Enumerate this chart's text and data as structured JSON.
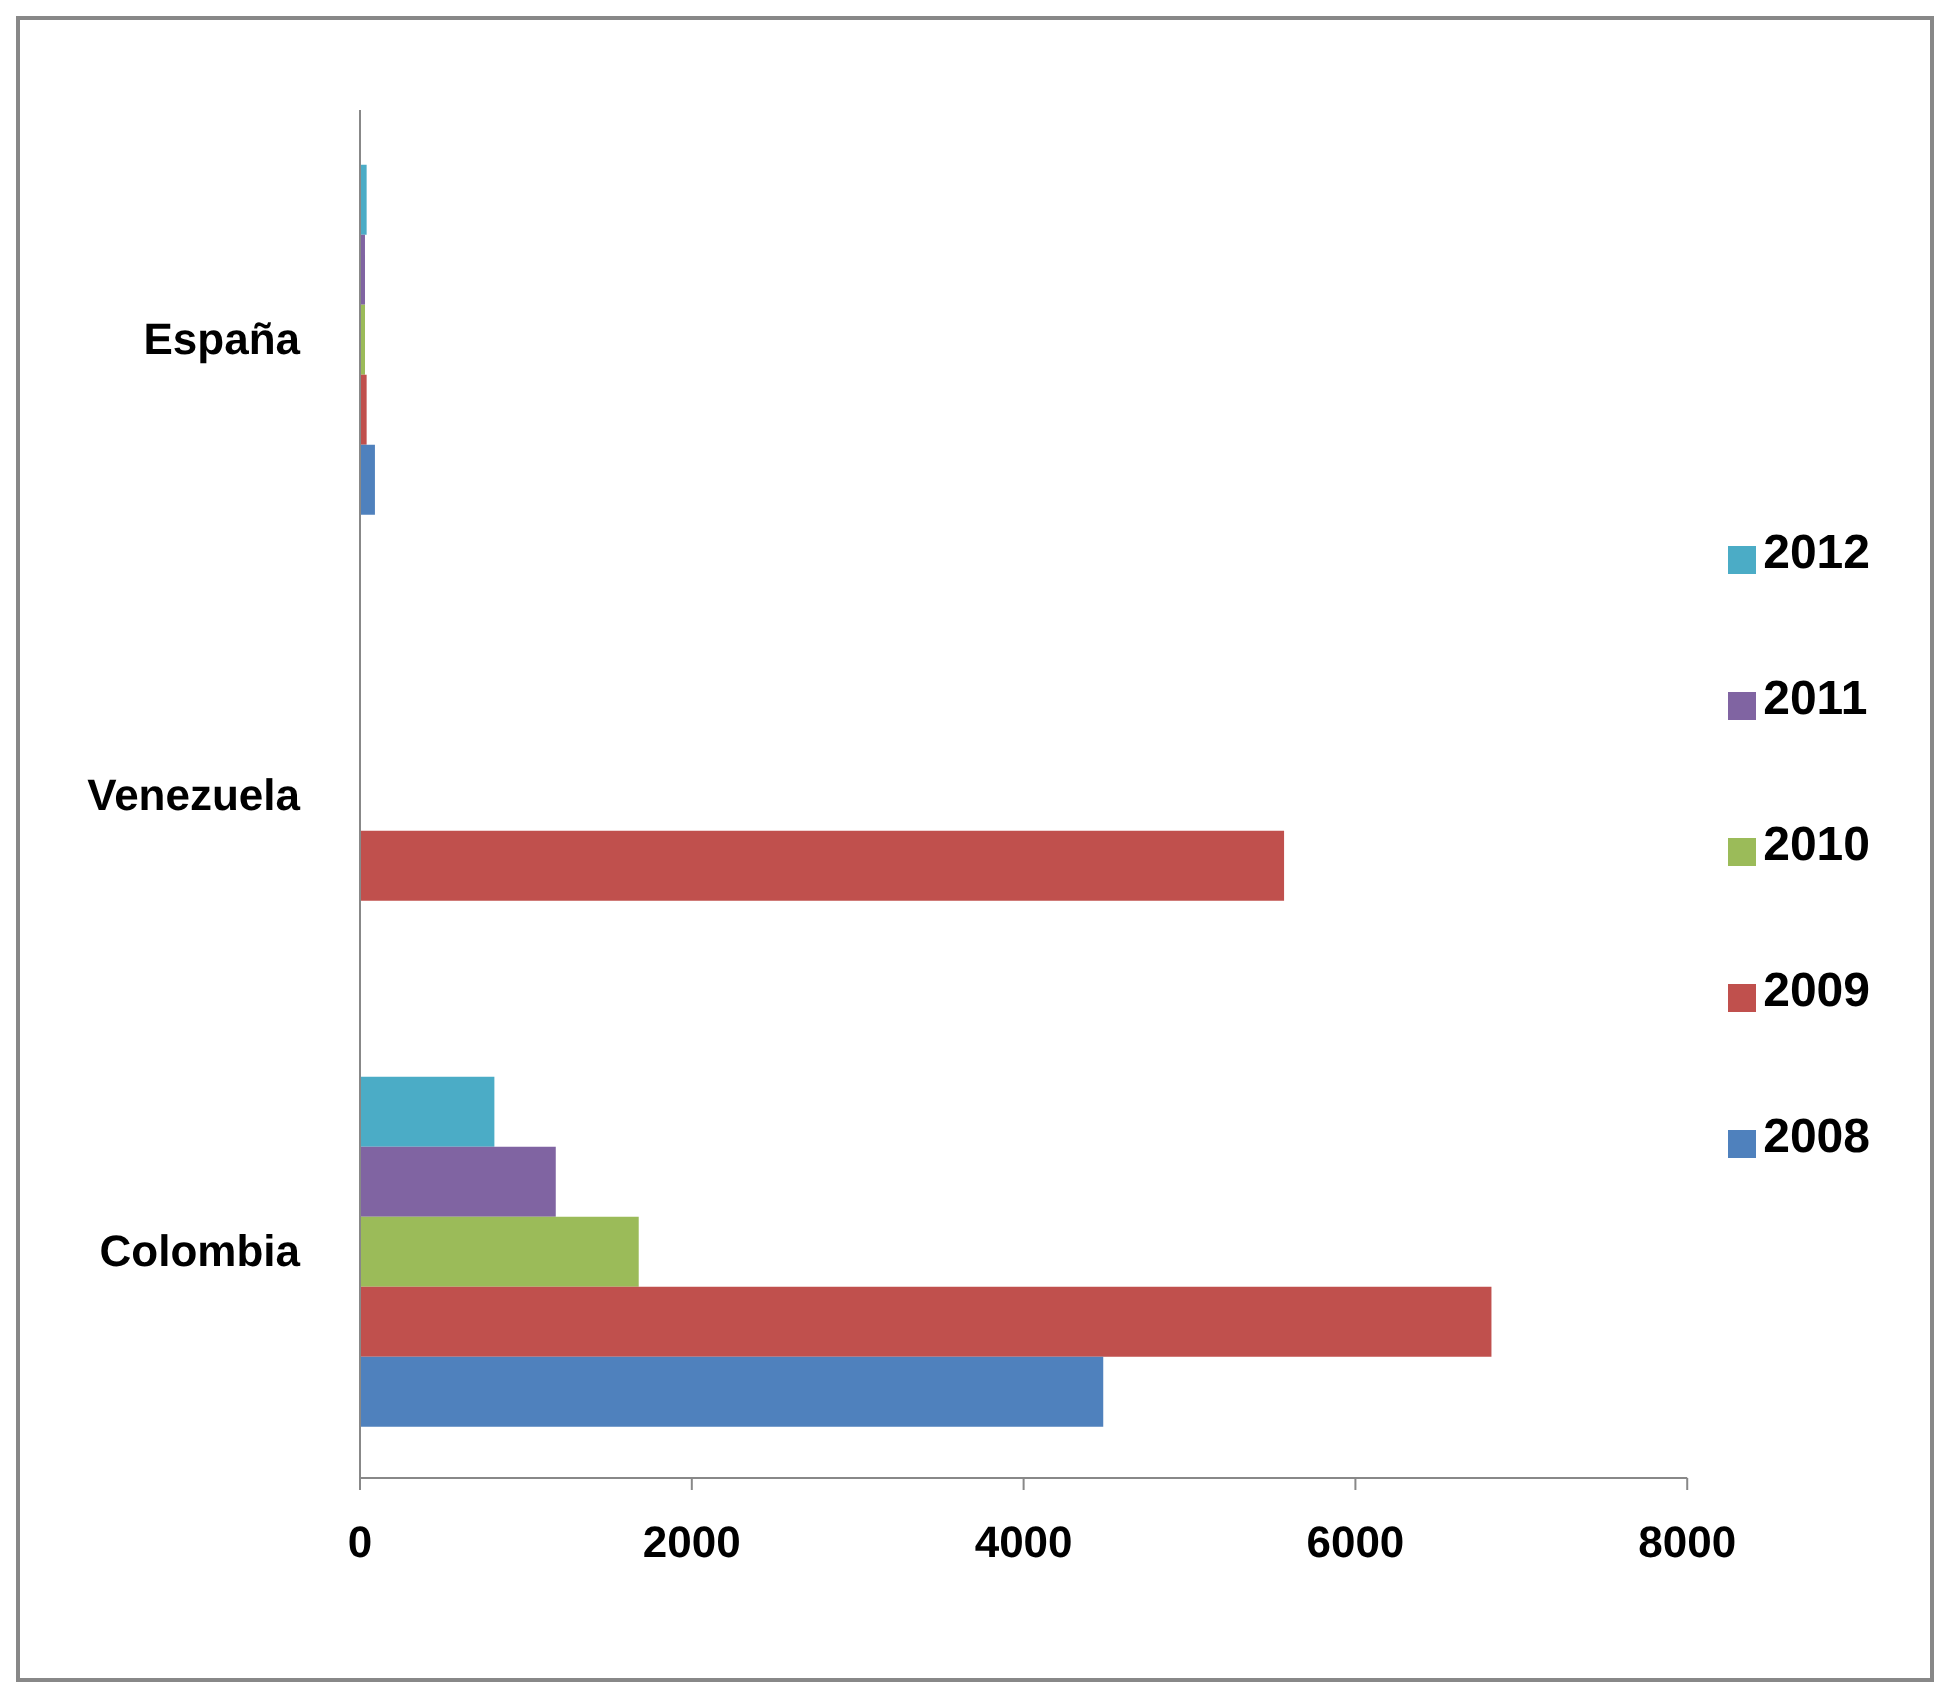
{
  "chart_data": {
    "type": "bar",
    "orientation": "horizontal",
    "categories": [
      "España",
      "Venezuela",
      "Colombia"
    ],
    "series": [
      {
        "name": "2008",
        "color": "#4f81bd",
        "values": [
          90,
          null,
          4480
        ]
      },
      {
        "name": "2009",
        "color": "#c0504d",
        "values": [
          40,
          5570,
          6820
        ]
      },
      {
        "name": "2010",
        "color": "#9bbb59",
        "values": [
          30,
          null,
          1680
        ]
      },
      {
        "name": "2011",
        "color": "#8064a2",
        "values": [
          30,
          null,
          1180
        ]
      },
      {
        "name": "2012",
        "color": "#4bacc6",
        "values": [
          40,
          null,
          810
        ]
      }
    ],
    "xlim": [
      0,
      8000
    ],
    "xticks": [
      0,
      2000,
      4000,
      6000,
      8000
    ],
    "legend": "right"
  }
}
